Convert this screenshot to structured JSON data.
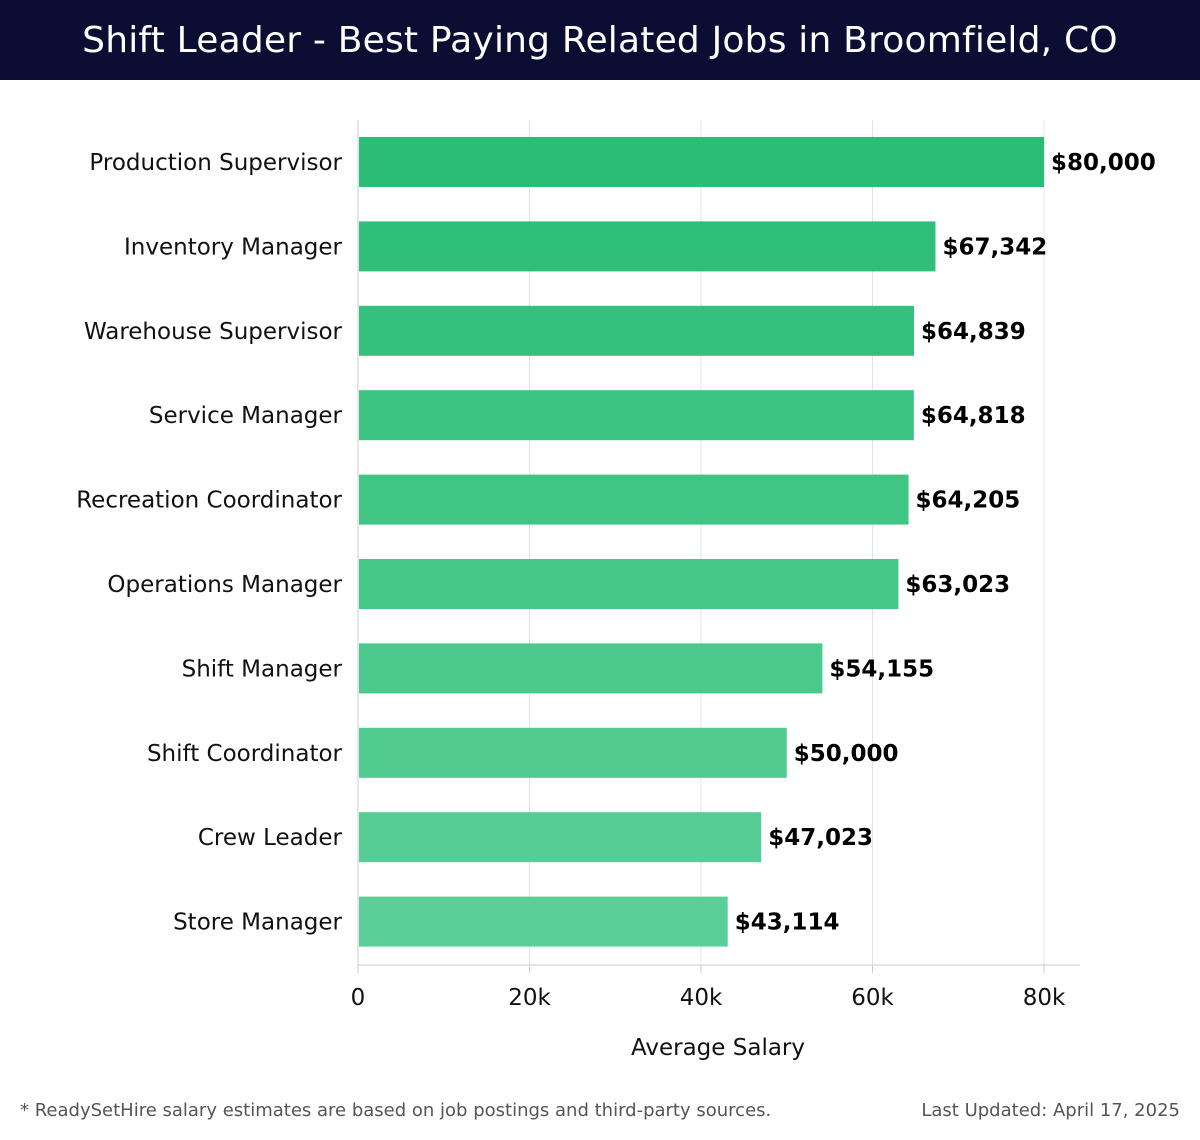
{
  "header": {
    "title": "Shift Leader - Best Paying Related Jobs in Broomfield, CO"
  },
  "chart_data": {
    "type": "bar",
    "orientation": "horizontal",
    "categories": [
      "Production Supervisor",
      "Inventory Manager",
      "Warehouse Supervisor",
      "Service Manager",
      "Recreation Coordinator",
      "Operations Manager",
      "Shift Manager",
      "Shift Coordinator",
      "Crew Leader",
      "Store Manager"
    ],
    "values": [
      80000,
      67342,
      64839,
      64818,
      64205,
      63023,
      54155,
      50000,
      47023,
      43114
    ],
    "value_labels": [
      "$80,000",
      "$67,342",
      "$64,839",
      "$64,818",
      "$64,205",
      "$63,023",
      "$54,155",
      "$50,000",
      "$47,023",
      "$43,114"
    ],
    "xlabel": "Average Salary",
    "ylabel": "",
    "xlim": [
      0,
      84000
    ],
    "xticks": [
      0,
      20000,
      40000,
      60000,
      80000
    ],
    "xtick_labels": [
      "0",
      "20k",
      "40k",
      "60k",
      "80k"
    ],
    "grid": "vertical",
    "colors": {
      "bar_top": "#29bd75",
      "bar_bottom": "#5ccf98",
      "grid": "#e3e3e3",
      "axis": "#cccccc"
    }
  },
  "footer": {
    "note": "* ReadySetHire salary estimates are based on job postings and third-party sources.",
    "last_updated": "Last Updated: April 17, 2025"
  }
}
